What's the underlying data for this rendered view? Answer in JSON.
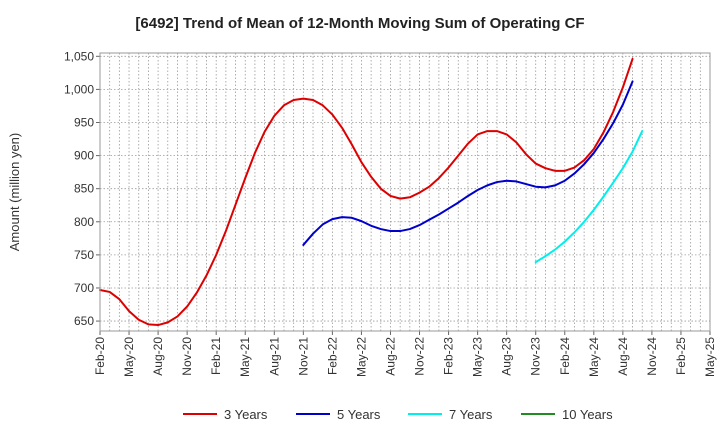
{
  "chart_data": {
    "type": "line",
    "title": "[6492]  Trend of Mean of 12-Month Moving Sum of Operating CF",
    "xlabel": "",
    "ylabel": "Amount (million yen)",
    "ylim": [
      635,
      1055
    ],
    "y_ticks": [
      650,
      700,
      750,
      800,
      850,
      900,
      950,
      1000,
      1050
    ],
    "y_tick_labels": [
      "650",
      "700",
      "750",
      "800",
      "850",
      "900",
      "950",
      "1,000",
      "1,050"
    ],
    "x_ticks": [
      "Feb-20",
      "May-20",
      "Aug-20",
      "Nov-20",
      "Feb-21",
      "May-21",
      "Aug-21",
      "Nov-21",
      "Feb-22",
      "May-22",
      "Aug-22",
      "Nov-22",
      "Feb-23",
      "May-23",
      "Aug-23",
      "Nov-23",
      "Feb-24",
      "May-24",
      "Aug-24",
      "Nov-24",
      "Feb-25",
      "May-25"
    ],
    "x_start": "2020-02",
    "grid": true,
    "legend_position": "bottom",
    "series": [
      {
        "name": "3 Years",
        "color": "#dd0000",
        "start_index": 0,
        "values": [
          697,
          694,
          683,
          665,
          652,
          645,
          644,
          648,
          657,
          672,
          693,
          719,
          750,
          786,
          826,
          866,
          904,
          936,
          960,
          976,
          984,
          986,
          984,
          976,
          962,
          942,
          917,
          890,
          868,
          850,
          839,
          835,
          837,
          844,
          853,
          866,
          882,
          900,
          918,
          932,
          937,
          937,
          932,
          920,
          902,
          888,
          881,
          877,
          877,
          882,
          893,
          910,
          935,
          966,
          1003,
          1046
        ]
      },
      {
        "name": "5 Years",
        "color": "#0000cc",
        "start_index": 21,
        "values": [
          765,
          782,
          796,
          804,
          807,
          806,
          801,
          794,
          789,
          786,
          786,
          789,
          795,
          803,
          811,
          820,
          829,
          839,
          848,
          855,
          860,
          862,
          861,
          857,
          853,
          852,
          855,
          862,
          873,
          887,
          904,
          925,
          949,
          977,
          1012
        ]
      },
      {
        "name": "7 Years",
        "color": "#00eeee",
        "start_index": 45,
        "values": [
          739,
          748,
          758,
          770,
          784,
          800,
          818,
          838,
          859,
          881,
          906,
          937
        ]
      },
      {
        "name": "10 Years",
        "color": "#228b22",
        "start_index": 0,
        "values": []
      }
    ]
  }
}
